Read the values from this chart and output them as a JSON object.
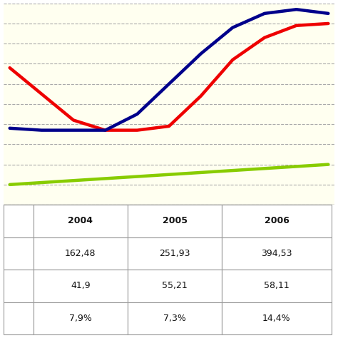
{
  "x_values": [
    0,
    1,
    2,
    3,
    4,
    5,
    6,
    7,
    8,
    9,
    10
  ],
  "blue_line": [
    38,
    37,
    37,
    37,
    45,
    60,
    75,
    88,
    95,
    97,
    95
  ],
  "red_line": [
    68,
    55,
    42,
    37,
    37,
    39,
    54,
    72,
    83,
    89,
    90
  ],
  "green_line": [
    10,
    11,
    12,
    13,
    14,
    15,
    16,
    17,
    18,
    19,
    20
  ],
  "table_years": [
    "2004",
    "2005",
    "2006"
  ],
  "table_row1": [
    "162,48",
    "251,93",
    "394,53"
  ],
  "table_row2": [
    "41,9",
    "55,21",
    "58,11"
  ],
  "table_row3": [
    "7,9%",
    "7,3%",
    "14,4%"
  ],
  "bg_color": "#FFFFF0",
  "blue_color": "#00008B",
  "red_color": "#EE0000",
  "green_color": "#88CC00",
  "grid_color": "#AAAAAA",
  "ylim": [
    0,
    100
  ],
  "xlim": [
    -0.2,
    10.2
  ],
  "num_gridlines": 10
}
